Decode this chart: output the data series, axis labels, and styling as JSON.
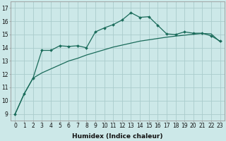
{
  "xlabel": "Humidex (Indice chaleur)",
  "background_color": "#cce8e8",
  "grid_color": "#aacccc",
  "line_color": "#1a6b5a",
  "x_values": [
    0,
    1,
    2,
    3,
    4,
    5,
    6,
    7,
    8,
    9,
    10,
    11,
    12,
    13,
    14,
    15,
    16,
    17,
    18,
    19,
    20,
    21,
    22,
    23
  ],
  "line1_y": [
    9.0,
    10.5,
    11.7,
    13.8,
    13.8,
    14.15,
    14.1,
    14.15,
    14.0,
    15.2,
    15.5,
    15.75,
    16.1,
    16.65,
    16.3,
    16.35,
    15.7,
    15.05,
    15.0,
    15.2,
    15.1,
    15.1,
    14.9,
    14.5
  ],
  "line2_y": [
    9.0,
    10.5,
    11.7,
    12.1,
    12.4,
    12.7,
    13.0,
    13.2,
    13.45,
    13.65,
    13.85,
    14.05,
    14.2,
    14.35,
    14.5,
    14.6,
    14.7,
    14.8,
    14.88,
    14.95,
    15.02,
    15.08,
    15.05,
    14.45
  ],
  "ylim": [
    8.5,
    17.5
  ],
  "xlim": [
    -0.5,
    23.5
  ],
  "yticks": [
    9,
    10,
    11,
    12,
    13,
    14,
    15,
    16,
    17
  ],
  "xticks": [
    0,
    1,
    2,
    3,
    4,
    5,
    6,
    7,
    8,
    9,
    10,
    11,
    12,
    13,
    14,
    15,
    16,
    17,
    18,
    19,
    20,
    21,
    22,
    23
  ],
  "tick_fontsize": 5.5,
  "xlabel_fontsize": 6.5
}
